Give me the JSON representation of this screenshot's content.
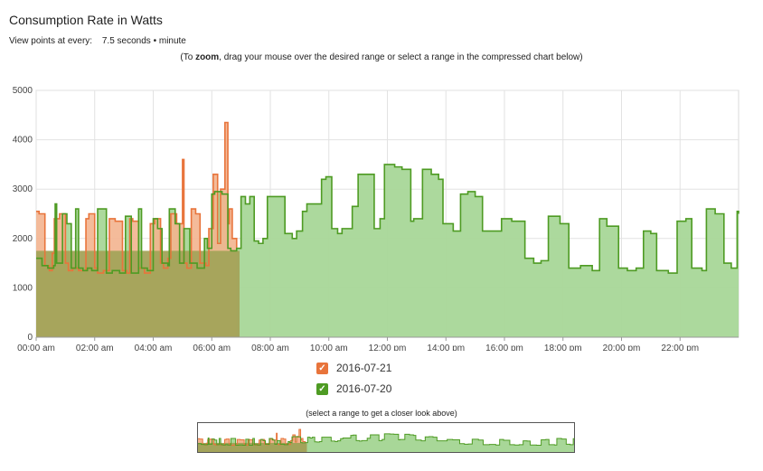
{
  "header": {
    "title": "Consumption Rate in Watts",
    "view_label": "View points at every:",
    "view_options": "7.5 seconds • minute",
    "zoom_hint_pre": "(To ",
    "zoom_hint_bold": "zoom",
    "zoom_hint_post": ", drag your mouse over the desired range or select a range in the compressed chart below)"
  },
  "navigator": {
    "hint": "(select a range to get a closer look above)"
  },
  "chart_data": {
    "type": "area",
    "title": "Consumption Rate in Watts",
    "xlabel": "",
    "ylabel": "",
    "x_range": [
      "00:00 am",
      "24:00"
    ],
    "ylim": [
      0,
      5000
    ],
    "y_ticks": [
      0,
      1000,
      2000,
      3000,
      4000,
      5000
    ],
    "x_ticks": [
      "00:00 am",
      "02:00 am",
      "04:00 am",
      "06:00 am",
      "08:00 am",
      "10:00 am",
      "12:00 pm",
      "14:00 pm",
      "16:00 pm",
      "18:00 pm",
      "20:00 pm",
      "22:00 pm"
    ],
    "grid": true,
    "legend_placement": "bottom-center",
    "series": [
      {
        "name": "2016-07-21",
        "color": "#e8743b",
        "fill": "#f3b48f",
        "x": [
          0.0,
          0.1,
          0.3,
          0.45,
          0.55,
          0.62,
          0.8,
          1.0,
          1.1,
          1.25,
          1.45,
          1.7,
          1.8,
          2.0,
          2.1,
          2.3,
          2.5,
          2.7,
          2.95,
          3.1,
          3.2,
          3.3,
          3.5,
          3.7,
          3.9,
          4.05,
          4.25,
          4.35,
          4.5,
          4.6,
          4.8,
          5.0,
          5.05,
          5.15,
          5.3,
          5.45,
          5.6,
          5.8,
          5.9,
          6.05,
          6.2,
          6.3,
          6.45,
          6.55,
          6.6,
          6.7,
          6.85
        ],
        "y": [
          2550,
          2500,
          1450,
          1350,
          1700,
          2400,
          2500,
          1500,
          1350,
          1400,
          1350,
          2400,
          2500,
          1400,
          1300,
          1350,
          2400,
          2350,
          1350,
          1300,
          2400,
          2350,
          1400,
          1300,
          2300,
          2400,
          1500,
          1400,
          1600,
          2500,
          2300,
          3600,
          1500,
          1400,
          2600,
          2500,
          1500,
          1450,
          2200,
          3300,
          1900,
          3000,
          4350,
          2300,
          2600,
          2000,
          1800
        ]
      },
      {
        "name": "2016-07-20",
        "color": "#4e9b23",
        "fill": "#a8d798",
        "x": [
          0.0,
          0.2,
          0.4,
          0.6,
          0.65,
          0.7,
          0.9,
          1.05,
          1.2,
          1.35,
          1.45,
          1.6,
          1.75,
          1.9,
          2.1,
          2.4,
          2.6,
          2.85,
          3.05,
          3.25,
          3.5,
          3.6,
          3.8,
          4.0,
          4.15,
          4.3,
          4.5,
          4.55,
          4.75,
          4.9,
          5.05,
          5.25,
          5.5,
          5.75,
          5.85,
          6.0,
          6.1,
          6.35,
          6.55,
          6.65,
          6.85,
          7.0,
          7.15,
          7.3,
          7.45,
          7.6,
          7.75,
          7.9,
          8.0,
          8.5,
          8.75,
          8.9,
          9.1,
          9.25,
          9.6,
          9.75,
          9.9,
          10.1,
          10.3,
          10.45,
          10.8,
          11.0,
          11.2,
          11.55,
          11.75,
          11.9,
          12.25,
          12.5,
          12.8,
          12.9,
          13.2,
          13.5,
          13.75,
          13.9,
          14.25,
          14.5,
          14.75,
          15.0,
          15.25,
          15.5,
          15.9,
          16.1,
          16.25,
          16.7,
          17.0,
          17.25,
          17.5,
          17.9,
          18.2,
          18.6,
          19.0,
          19.25,
          19.5,
          19.9,
          20.2,
          20.5,
          20.75,
          21.0,
          21.2,
          21.6,
          21.9,
          22.2,
          22.4,
          22.75,
          22.9,
          23.2,
          23.5,
          23.75,
          23.95,
          24.0
        ],
        "y": [
          1600,
          1450,
          1400,
          1450,
          2700,
          1500,
          2500,
          2300,
          1400,
          2600,
          1400,
          1350,
          1400,
          1350,
          2600,
          1300,
          1350,
          1300,
          2450,
          1300,
          2600,
          1400,
          1350,
          2400,
          2200,
          1500,
          1450,
          2600,
          2300,
          1500,
          2200,
          1500,
          1400,
          2000,
          1800,
          2900,
          2950,
          2900,
          1800,
          1750,
          1800,
          2850,
          2700,
          2850,
          1950,
          1900,
          2000,
          2850,
          2850,
          2100,
          2000,
          2150,
          2550,
          2700,
          2700,
          3200,
          3250,
          2200,
          2100,
          2200,
          2650,
          3300,
          3300,
          2200,
          2400,
          3500,
          3450,
          3400,
          2350,
          2400,
          3400,
          3300,
          3200,
          2300,
          2150,
          2900,
          2950,
          2850,
          2150,
          2150,
          2400,
          2400,
          2350,
          1600,
          1500,
          1550,
          2450,
          2300,
          1400,
          1450,
          1350,
          2400,
          2250,
          1400,
          1350,
          1400,
          2150,
          2100,
          1350,
          1300,
          2350,
          2400,
          1400,
          1350,
          2600,
          2500,
          1500,
          1400,
          2550,
          2500
        ]
      }
    ],
    "overlap_fill": "#a3a35a",
    "overlap_end": 6.95
  }
}
